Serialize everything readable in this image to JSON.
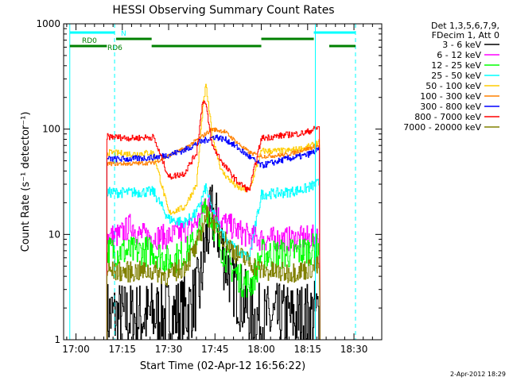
{
  "chart_data": {
    "type": "line",
    "title": "HESSI Observing Summary Count Rates",
    "xlabel": "Start Time (02-Apr-12 16:56:22)",
    "ylabel": "Count Rate (s⁻¹ detector⁻¹)",
    "y_scale": "log",
    "ylim": [
      1,
      1000
    ],
    "x_range_minutes_after_1700": [
      -4,
      34
    ],
    "x_ticks": [
      {
        "label": "17:00",
        "min": 0
      },
      {
        "label": "17:15",
        "min": 15
      },
      {
        "label": "17:30",
        "min": 30
      },
      {
        "label": "17:45",
        "min": 45
      },
      {
        "label": "18:00",
        "min": 60
      },
      {
        "label": "18:15",
        "min": 75
      },
      {
        "label": "18:30",
        "min": 90
      }
    ],
    "y_ticks": [
      {
        "label": "1",
        "value": 1
      },
      {
        "label": "10",
        "value": 10
      },
      {
        "label": "100",
        "value": 100
      },
      {
        "label": "1000",
        "value": 1000
      }
    ],
    "legend_header": [
      "Det 1,3,5,6,7,9,",
      "FDecim 1, Att 0"
    ],
    "legend_position": "right",
    "series": [
      {
        "name": "3 - 6 keV",
        "color": "#000000",
        "pts": [
          [
            10,
            1.7
          ],
          [
            18,
            1.6
          ],
          [
            25,
            1.7
          ],
          [
            30,
            1.7
          ],
          [
            36,
            1.9
          ],
          [
            40,
            3.0
          ],
          [
            42,
            8.5
          ],
          [
            44,
            15
          ],
          [
            46,
            11
          ],
          [
            48,
            6.0
          ],
          [
            52,
            3.0
          ],
          [
            56,
            1.8
          ],
          [
            60,
            1.5
          ],
          [
            68,
            1.6
          ],
          [
            74,
            1.6
          ],
          [
            79,
            1.8
          ]
        ],
        "noise": 0.35
      },
      {
        "name": "6 - 12 keV",
        "color": "#ff00ff",
        "pts": [
          [
            10,
            9.5
          ],
          [
            14,
            9.8
          ],
          [
            18,
            12.5
          ],
          [
            20,
            10
          ],
          [
            25,
            9.5
          ],
          [
            30,
            9.5
          ],
          [
            36,
            11
          ],
          [
            40,
            14
          ],
          [
            42,
            22
          ],
          [
            44,
            17
          ],
          [
            48,
            13
          ],
          [
            52,
            11
          ],
          [
            56,
            9.5
          ],
          [
            60,
            9.0
          ],
          [
            68,
            9.0
          ],
          [
            74,
            9.2
          ],
          [
            79,
            9.5
          ]
        ],
        "noise": 0.12
      },
      {
        "name": "12 - 25 keV",
        "color": "#00ff00",
        "pts": [
          [
            10,
            7.0
          ],
          [
            18,
            6.8
          ],
          [
            25,
            7.0
          ],
          [
            30,
            5.5
          ],
          [
            35,
            6.5
          ],
          [
            39,
            8.5
          ],
          [
            42,
            19
          ],
          [
            44,
            14
          ],
          [
            46,
            8.5
          ],
          [
            50,
            5.0
          ],
          [
            54,
            3.5
          ],
          [
            57,
            3.5
          ],
          [
            60,
            6.5
          ],
          [
            68,
            6.5
          ],
          [
            74,
            7.0
          ],
          [
            79,
            7.5
          ]
        ],
        "noise": 0.15
      },
      {
        "name": "25 - 50 keV",
        "color": "#00ffff",
        "pts": [
          [
            10,
            25
          ],
          [
            18,
            25
          ],
          [
            25,
            25.5
          ],
          [
            30,
            14
          ],
          [
            35,
            13
          ],
          [
            39,
            16
          ],
          [
            42,
            28
          ],
          [
            44,
            17
          ],
          [
            48,
            9.5
          ],
          [
            52,
            7
          ],
          [
            56,
            6
          ],
          [
            60,
            24
          ],
          [
            68,
            25
          ],
          [
            74,
            27
          ],
          [
            79,
            31
          ]
        ],
        "noise": 0.05
      },
      {
        "name": "50 - 100 keV",
        "color": "#ffcc00",
        "pts": [
          [
            10,
            60
          ],
          [
            18,
            58
          ],
          [
            25,
            60
          ],
          [
            30,
            16
          ],
          [
            35,
            18
          ],
          [
            39,
            30
          ],
          [
            41,
            160
          ],
          [
            42,
            260
          ],
          [
            44,
            90
          ],
          [
            47,
            40
          ],
          [
            52,
            28
          ],
          [
            56,
            26
          ],
          [
            60,
            62
          ],
          [
            68,
            62
          ],
          [
            74,
            66
          ],
          [
            79,
            75
          ]
        ],
        "noise": 0.03
      },
      {
        "name": "100 - 300 keV",
        "color": "#ff8000",
        "pts": [
          [
            10,
            47
          ],
          [
            18,
            47
          ],
          [
            25,
            48
          ],
          [
            30,
            56
          ],
          [
            35,
            65
          ],
          [
            40,
            82
          ],
          [
            44,
            100
          ],
          [
            48,
            95
          ],
          [
            52,
            75
          ],
          [
            56,
            60
          ],
          [
            60,
            55
          ],
          [
            68,
            57
          ],
          [
            74,
            64
          ],
          [
            79,
            70
          ]
        ],
        "noise": 0.02
      },
      {
        "name": "300 - 800 keV",
        "color": "#0000ff",
        "pts": [
          [
            10,
            52
          ],
          [
            18,
            52
          ],
          [
            25,
            54
          ],
          [
            30,
            57
          ],
          [
            35,
            63
          ],
          [
            40,
            75
          ],
          [
            45,
            85
          ],
          [
            49,
            78
          ],
          [
            53,
            64
          ],
          [
            57,
            52
          ],
          [
            60,
            45
          ],
          [
            68,
            52
          ],
          [
            74,
            56
          ],
          [
            79,
            64
          ]
        ],
        "noise": 0.03
      },
      {
        "name": "800 - 7000 keV",
        "color": "#ff0000",
        "pts": [
          [
            10,
            85
          ],
          [
            18,
            82
          ],
          [
            25,
            84
          ],
          [
            30,
            35
          ],
          [
            35,
            38
          ],
          [
            39,
            60
          ],
          [
            41,
            190
          ],
          [
            42,
            170
          ],
          [
            44,
            70
          ],
          [
            48,
            45
          ],
          [
            52,
            32
          ],
          [
            56,
            26
          ],
          [
            60,
            82
          ],
          [
            68,
            88
          ],
          [
            74,
            92
          ],
          [
            79,
            105
          ]
        ],
        "noise": 0.03
      },
      {
        "name": "7000 - 20000 keV",
        "color": "#808000",
        "pts": [
          [
            10,
            4.5
          ],
          [
            18,
            4.4
          ],
          [
            25,
            4.5
          ],
          [
            30,
            4.0
          ],
          [
            35,
            5.0
          ],
          [
            39,
            7.5
          ],
          [
            42,
            15
          ],
          [
            44,
            14
          ],
          [
            48,
            9.0
          ],
          [
            52,
            6.5
          ],
          [
            56,
            5.5
          ],
          [
            60,
            4.5
          ],
          [
            68,
            4.3
          ],
          [
            74,
            4.6
          ],
          [
            79,
            5.0
          ]
        ],
        "noise": 0.1
      }
    ],
    "state_bars": [
      {
        "label": "N",
        "color": "#00ffff",
        "level": "top",
        "segments": [
          [
            -2,
            12.5
          ],
          [
            77,
            90.5
          ]
        ]
      },
      {
        "label": "RD0",
        "color": "#008000",
        "level": "middle",
        "segments": [
          [
            13,
            24.5
          ],
          [
            60,
            77
          ]
        ]
      },
      {
        "label": "RD6",
        "color": "#008000",
        "level": "bottom",
        "segments": [
          [
            -2,
            10
          ],
          [
            24.5,
            60
          ],
          [
            82,
            90.5
          ]
        ]
      }
    ],
    "vertical_markers": [
      {
        "min": -2,
        "color": "#00ffff",
        "style": "solid"
      },
      {
        "min": 12.5,
        "color": "#00ffff",
        "style": "dashed"
      },
      {
        "min": 77.5,
        "color": "#00ffff",
        "style": "solid"
      },
      {
        "min": 90.5,
        "color": "#00ffff",
        "style": "dashed"
      }
    ],
    "footer": "2-Apr-2012 18:29"
  }
}
